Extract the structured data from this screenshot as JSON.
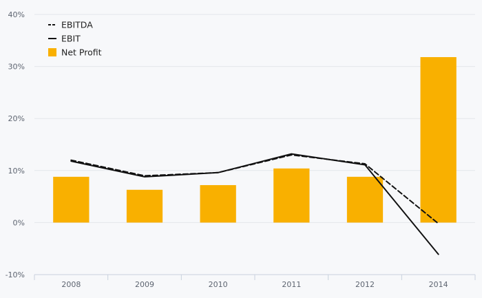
{
  "chart_data": {
    "type": "bar",
    "title": "",
    "xlabel": "",
    "ylabel": "",
    "categories": [
      "2008",
      "2009",
      "2010",
      "2011",
      "2012",
      "2014"
    ],
    "ylim": [
      -10,
      40
    ],
    "yticks": [
      -10,
      0,
      10,
      20,
      30,
      40
    ],
    "ytick_labels": [
      "-10%",
      "0%",
      "10%",
      "20%",
      "30%",
      "40%"
    ],
    "grid": true,
    "legend_position": "top-left",
    "series": [
      {
        "name": "EBITDA",
        "type": "line",
        "style": "dashed",
        "color": "#111111",
        "values": [
          12.0,
          9.0,
          9.6,
          13.0,
          11.3,
          -0.2
        ]
      },
      {
        "name": "EBIT",
        "type": "line",
        "style": "solid",
        "color": "#111111",
        "values": [
          11.8,
          8.8,
          9.6,
          13.2,
          11.1,
          -6.1
        ]
      },
      {
        "name": "Net Profit",
        "type": "bar",
        "color": "#f9b000",
        "values": [
          8.8,
          6.3,
          7.2,
          10.4,
          8.8,
          31.8
        ]
      }
    ]
  }
}
